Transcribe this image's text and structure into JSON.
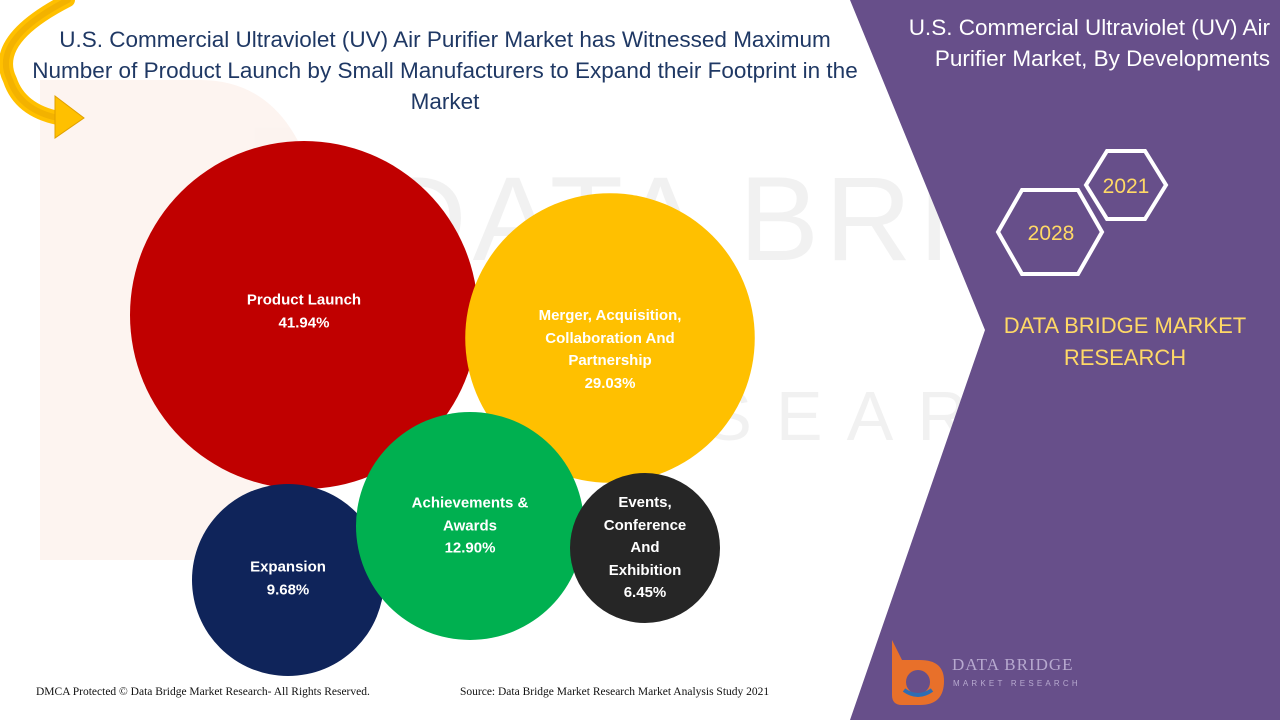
{
  "headline": "U.S. Commercial Ultraviolet (UV) Air Purifier Market has Witnessed Maximum Number of Product Launch by Small Manufacturers to Expand their Footprint in the Market",
  "right_panel": {
    "title": "U.S. Commercial Ultraviolet (UV) Air Purifier Market, By Developments",
    "year_start": "2021",
    "year_end": "2028",
    "brand_text": "DATA BRIDGE MARKET RESEARCH"
  },
  "logo": {
    "name": "DATA BRIDGE",
    "tagline": "MARKET RESEARCH"
  },
  "footer": {
    "copyright": "DMCA Protected © Data Bridge Market Research- All Rights Reserved.",
    "source": "Source: Data Bridge Market Research Market Analysis Study 2021"
  },
  "colors": {
    "panel": "#674f8a",
    "product_launch": "#c00000",
    "merger": "#ffc000",
    "achievements": "#00b050",
    "expansion": "#0f245a",
    "events": "#262626",
    "arrow": "#ffc000"
  },
  "chart_data": {
    "type": "bubble",
    "categories": [
      "Product Launch",
      "Merger, Acquisition, Collaboration And Partnership",
      "Achievements & Awards",
      "Expansion",
      "Events, Conference And Exhibition"
    ],
    "values": [
      41.94,
      29.03,
      12.9,
      9.68,
      6.45
    ],
    "value_labels": [
      "41.94%",
      "29.03%",
      "12.90%",
      "9.68%",
      "6.45%"
    ],
    "label_lines": [
      [
        "Product Launch"
      ],
      [
        "Merger, Acquisition,",
        "Collaboration And",
        "Partnership"
      ],
      [
        "Achievements &",
        "Awards"
      ],
      [
        "Expansion"
      ],
      [
        "Events,",
        "Conference",
        "And",
        "Exhibition"
      ]
    ],
    "unit": "%"
  }
}
